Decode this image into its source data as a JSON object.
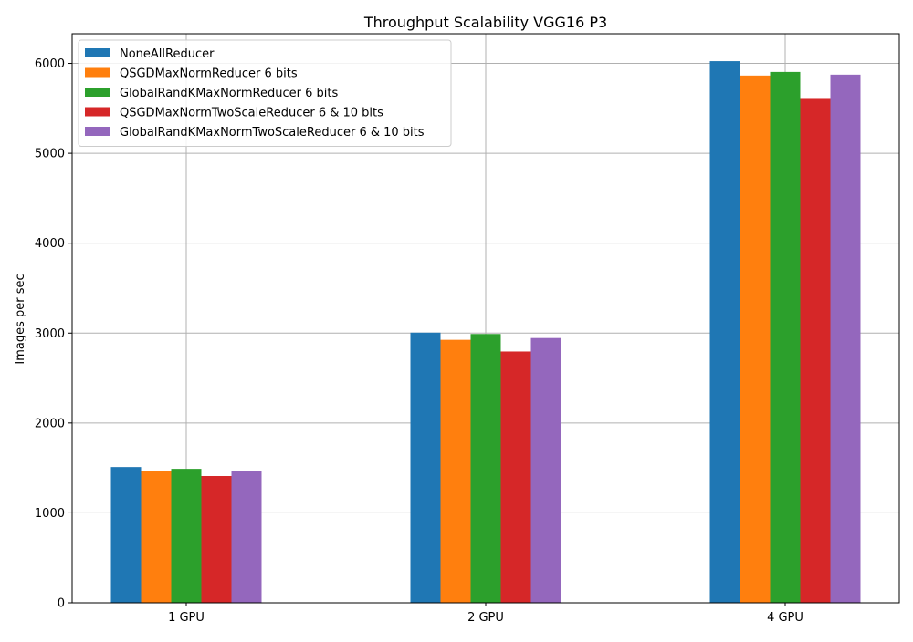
{
  "chart_data": {
    "type": "bar",
    "title": "Throughput Scalability VGG16 P3",
    "xlabel": "",
    "ylabel": "Images per sec",
    "categories": [
      "1 GPU",
      "2 GPU",
      "4 GPU"
    ],
    "ylim": [
      0,
      6330
    ],
    "yticks": [
      "0",
      "1000",
      "2000",
      "3000",
      "4000",
      "5000",
      "6000"
    ],
    "grid": true,
    "legend_position": "top-left",
    "series": [
      {
        "name": "NoneAllReducer",
        "color": "#1f77b4",
        "values": [
          1510,
          3005,
          6025
        ]
      },
      {
        "name": "QSGDMaxNormReducer 6 bits",
        "color": "#ff7f0e",
        "values": [
          1470,
          2925,
          5865
        ]
      },
      {
        "name": "GlobalRandKMaxNormReducer 6 bits",
        "color": "#2ca02c",
        "values": [
          1490,
          2990,
          5905
        ]
      },
      {
        "name": "QSGDMaxNormTwoScaleReducer 6 & 10 bits",
        "color": "#d62728",
        "values": [
          1410,
          2795,
          5605
        ]
      },
      {
        "name": "GlobalRandKMaxNormTwoScaleReducer 6 & 10 bits",
        "color": "#9467bd",
        "values": [
          1470,
          2945,
          5875
        ]
      }
    ]
  }
}
